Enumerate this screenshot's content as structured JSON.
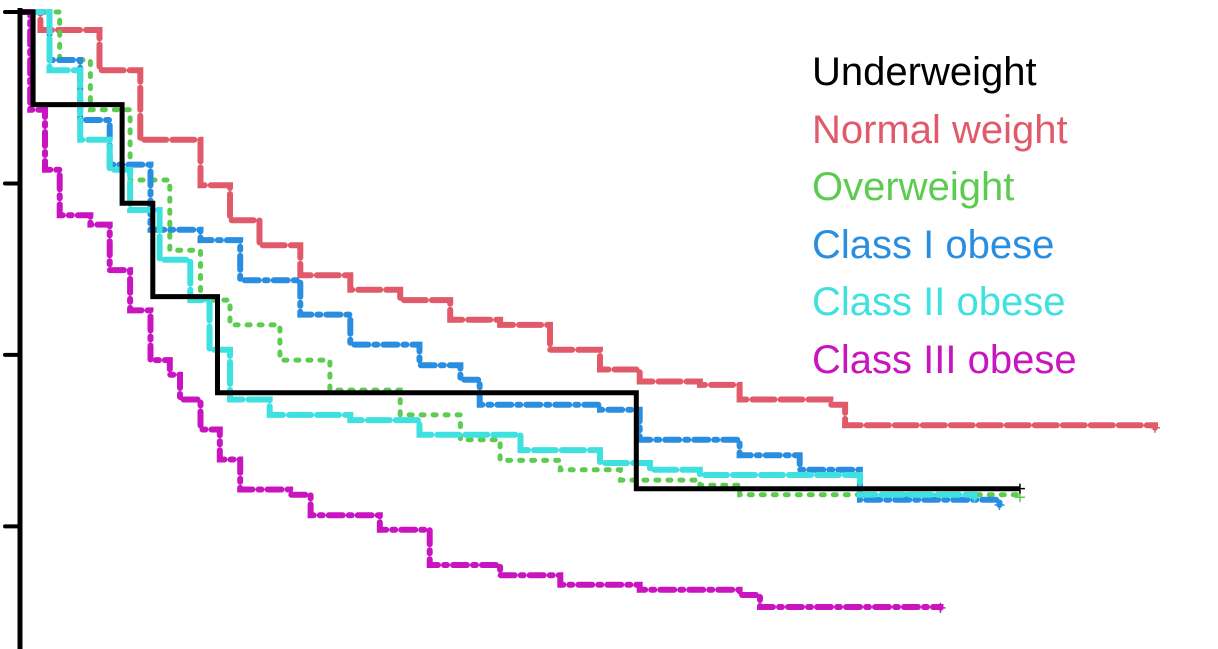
{
  "chart_data": {
    "type": "line",
    "title": "",
    "xlabel": "",
    "ylabel": "",
    "xlim": [
      0,
      100
    ],
    "ylim": [
      0.257,
      1.0
    ],
    "yticks": [
      1.0,
      0.8,
      0.6,
      0.4
    ],
    "ytick_labels_shown": false,
    "x_axis_shown": false,
    "grid": false,
    "legend_position": "top-right",
    "series": [
      {
        "name": "Underweight",
        "color": "#000000",
        "style": "step",
        "points": [
          [
            0,
            1.0
          ],
          [
            1.15,
            1.0
          ],
          [
            1.15,
            0.892
          ],
          [
            9.0,
            0.892
          ],
          [
            9.0,
            0.777
          ],
          [
            11.7,
            0.777
          ],
          [
            11.7,
            0.668
          ],
          [
            17.4,
            0.668
          ],
          [
            17.4,
            0.556
          ],
          [
            54.3,
            0.556
          ],
          [
            54.3,
            0.444
          ],
          [
            88.1,
            0.444
          ]
        ]
      },
      {
        "name": "Normal weight",
        "color": "#e05a6a",
        "style": "dashed",
        "points": [
          [
            0,
            1.0
          ],
          [
            1.8,
            0.979
          ],
          [
            7.0,
            0.932
          ],
          [
            10.6,
            0.851
          ],
          [
            15.9,
            0.798
          ],
          [
            18.5,
            0.757
          ],
          [
            21.1,
            0.728
          ],
          [
            24.7,
            0.693
          ],
          [
            29.1,
            0.676
          ],
          [
            33.5,
            0.664
          ],
          [
            37.9,
            0.641
          ],
          [
            42.3,
            0.635
          ],
          [
            46.7,
            0.606
          ],
          [
            51.1,
            0.583
          ],
          [
            54.6,
            0.569
          ],
          [
            59.9,
            0.565
          ],
          [
            63.4,
            0.548
          ],
          [
            71.4,
            0.542
          ],
          [
            72.7,
            0.518
          ],
          [
            100,
            0.515
          ]
        ]
      },
      {
        "name": "Overweight",
        "color": "#5ccc50",
        "style": "dotted",
        "points": [
          [
            0,
            1.0
          ],
          [
            3.5,
            0.944
          ],
          [
            6.2,
            0.886
          ],
          [
            9.7,
            0.804
          ],
          [
            13.2,
            0.722
          ],
          [
            15.9,
            0.664
          ],
          [
            18.5,
            0.635
          ],
          [
            22.9,
            0.594
          ],
          [
            27.3,
            0.559
          ],
          [
            33.5,
            0.53
          ],
          [
            38.8,
            0.501
          ],
          [
            42.3,
            0.477
          ],
          [
            47.6,
            0.466
          ],
          [
            52.9,
            0.454
          ],
          [
            59.9,
            0.448
          ],
          [
            63.4,
            0.437
          ],
          [
            88.1,
            0.434
          ]
        ]
      },
      {
        "name": "Class I obese",
        "color": "#2a8ee0",
        "style": "dashdot",
        "points": [
          [
            0,
            1.0
          ],
          [
            2.6,
            0.944
          ],
          [
            5.3,
            0.874
          ],
          [
            7.9,
            0.822
          ],
          [
            11.5,
            0.746
          ],
          [
            15.9,
            0.734
          ],
          [
            19.4,
            0.687
          ],
          [
            24.7,
            0.647
          ],
          [
            29.1,
            0.612
          ],
          [
            35.2,
            0.588
          ],
          [
            38.8,
            0.571
          ],
          [
            40.5,
            0.542
          ],
          [
            51.1,
            0.536
          ],
          [
            54.6,
            0.501
          ],
          [
            63.4,
            0.483
          ],
          [
            68.7,
            0.466
          ],
          [
            74.0,
            0.431
          ],
          [
            86.3,
            0.425
          ]
        ]
      },
      {
        "name": "Class II obese",
        "color": "#3ee0e0",
        "style": "dashed",
        "points": [
          [
            0,
            1.0
          ],
          [
            2.6,
            0.932
          ],
          [
            5.3,
            0.851
          ],
          [
            7.9,
            0.816
          ],
          [
            9.7,
            0.769
          ],
          [
            12.3,
            0.711
          ],
          [
            15.0,
            0.664
          ],
          [
            16.7,
            0.606
          ],
          [
            18.5,
            0.548
          ],
          [
            22.0,
            0.53
          ],
          [
            29.1,
            0.524
          ],
          [
            35.2,
            0.507
          ],
          [
            44.1,
            0.489
          ],
          [
            51.1,
            0.474
          ],
          [
            55.5,
            0.466
          ],
          [
            59.9,
            0.46
          ],
          [
            74.0,
            0.457
          ],
          [
            74.0,
            0.437
          ],
          [
            84.1,
            0.434
          ]
        ]
      },
      {
        "name": "Class III obese",
        "color": "#c815c0",
        "style": "dashdot",
        "points": [
          [
            0,
            1.0
          ],
          [
            0.9,
            0.886
          ],
          [
            2.2,
            0.816
          ],
          [
            3.5,
            0.763
          ],
          [
            6.2,
            0.752
          ],
          [
            7.9,
            0.699
          ],
          [
            9.7,
            0.652
          ],
          [
            11.5,
            0.594
          ],
          [
            13.2,
            0.577
          ],
          [
            14.1,
            0.548
          ],
          [
            15.9,
            0.513
          ],
          [
            17.6,
            0.478
          ],
          [
            19.4,
            0.443
          ],
          [
            23.8,
            0.437
          ],
          [
            25.6,
            0.413
          ],
          [
            31.7,
            0.396
          ],
          [
            36.1,
            0.355
          ],
          [
            42.3,
            0.343
          ],
          [
            47.6,
            0.332
          ],
          [
            54.6,
            0.326
          ],
          [
            63.4,
            0.32
          ],
          [
            65.2,
            0.306
          ],
          [
            81.1,
            0.305
          ]
        ]
      }
    ]
  }
}
